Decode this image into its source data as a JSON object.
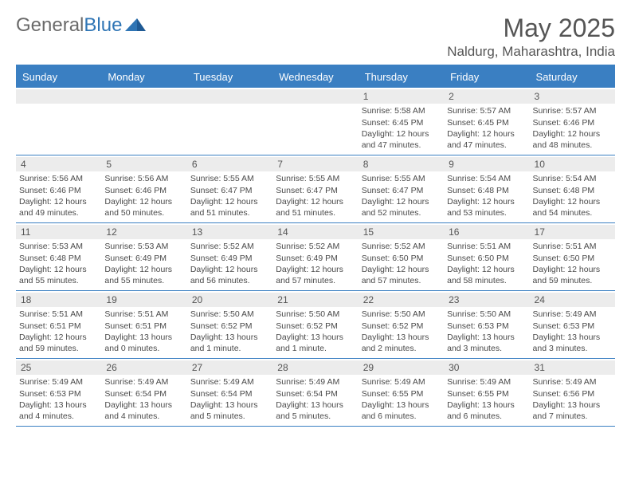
{
  "logo": {
    "text1": "General",
    "text2": "Blue"
  },
  "title": "May 2025",
  "location": "Naldurg, Maharashtra, India",
  "colors": {
    "header_bg": "#3a7fc2",
    "header_text": "#ffffff",
    "daynum_bg": "#ececec",
    "border": "#3a7fc2",
    "body_text": "#4a4a4a",
    "title_text": "#555555",
    "logo_gray": "#6a6a6a",
    "logo_blue": "#2f75b5",
    "background": "#ffffff"
  },
  "typography": {
    "title_fontsize": 32,
    "location_fontsize": 17,
    "dayheader_fontsize": 13,
    "daynum_fontsize": 12,
    "cell_fontsize": 10.5,
    "font_family": "Arial"
  },
  "dayNames": [
    "Sunday",
    "Monday",
    "Tuesday",
    "Wednesday",
    "Thursday",
    "Friday",
    "Saturday"
  ],
  "weeks": [
    [
      null,
      null,
      null,
      null,
      {
        "n": "1",
        "sr": "Sunrise: 5:58 AM",
        "ss": "Sunset: 6:45 PM",
        "d1": "Daylight: 12 hours",
        "d2": "and 47 minutes."
      },
      {
        "n": "2",
        "sr": "Sunrise: 5:57 AM",
        "ss": "Sunset: 6:45 PM",
        "d1": "Daylight: 12 hours",
        "d2": "and 47 minutes."
      },
      {
        "n": "3",
        "sr": "Sunrise: 5:57 AM",
        "ss": "Sunset: 6:46 PM",
        "d1": "Daylight: 12 hours",
        "d2": "and 48 minutes."
      }
    ],
    [
      {
        "n": "4",
        "sr": "Sunrise: 5:56 AM",
        "ss": "Sunset: 6:46 PM",
        "d1": "Daylight: 12 hours",
        "d2": "and 49 minutes."
      },
      {
        "n": "5",
        "sr": "Sunrise: 5:56 AM",
        "ss": "Sunset: 6:46 PM",
        "d1": "Daylight: 12 hours",
        "d2": "and 50 minutes."
      },
      {
        "n": "6",
        "sr": "Sunrise: 5:55 AM",
        "ss": "Sunset: 6:47 PM",
        "d1": "Daylight: 12 hours",
        "d2": "and 51 minutes."
      },
      {
        "n": "7",
        "sr": "Sunrise: 5:55 AM",
        "ss": "Sunset: 6:47 PM",
        "d1": "Daylight: 12 hours",
        "d2": "and 51 minutes."
      },
      {
        "n": "8",
        "sr": "Sunrise: 5:55 AM",
        "ss": "Sunset: 6:47 PM",
        "d1": "Daylight: 12 hours",
        "d2": "and 52 minutes."
      },
      {
        "n": "9",
        "sr": "Sunrise: 5:54 AM",
        "ss": "Sunset: 6:48 PM",
        "d1": "Daylight: 12 hours",
        "d2": "and 53 minutes."
      },
      {
        "n": "10",
        "sr": "Sunrise: 5:54 AM",
        "ss": "Sunset: 6:48 PM",
        "d1": "Daylight: 12 hours",
        "d2": "and 54 minutes."
      }
    ],
    [
      {
        "n": "11",
        "sr": "Sunrise: 5:53 AM",
        "ss": "Sunset: 6:48 PM",
        "d1": "Daylight: 12 hours",
        "d2": "and 55 minutes."
      },
      {
        "n": "12",
        "sr": "Sunrise: 5:53 AM",
        "ss": "Sunset: 6:49 PM",
        "d1": "Daylight: 12 hours",
        "d2": "and 55 minutes."
      },
      {
        "n": "13",
        "sr": "Sunrise: 5:52 AM",
        "ss": "Sunset: 6:49 PM",
        "d1": "Daylight: 12 hours",
        "d2": "and 56 minutes."
      },
      {
        "n": "14",
        "sr": "Sunrise: 5:52 AM",
        "ss": "Sunset: 6:49 PM",
        "d1": "Daylight: 12 hours",
        "d2": "and 57 minutes."
      },
      {
        "n": "15",
        "sr": "Sunrise: 5:52 AM",
        "ss": "Sunset: 6:50 PM",
        "d1": "Daylight: 12 hours",
        "d2": "and 57 minutes."
      },
      {
        "n": "16",
        "sr": "Sunrise: 5:51 AM",
        "ss": "Sunset: 6:50 PM",
        "d1": "Daylight: 12 hours",
        "d2": "and 58 minutes."
      },
      {
        "n": "17",
        "sr": "Sunrise: 5:51 AM",
        "ss": "Sunset: 6:50 PM",
        "d1": "Daylight: 12 hours",
        "d2": "and 59 minutes."
      }
    ],
    [
      {
        "n": "18",
        "sr": "Sunrise: 5:51 AM",
        "ss": "Sunset: 6:51 PM",
        "d1": "Daylight: 12 hours",
        "d2": "and 59 minutes."
      },
      {
        "n": "19",
        "sr": "Sunrise: 5:51 AM",
        "ss": "Sunset: 6:51 PM",
        "d1": "Daylight: 13 hours",
        "d2": "and 0 minutes."
      },
      {
        "n": "20",
        "sr": "Sunrise: 5:50 AM",
        "ss": "Sunset: 6:52 PM",
        "d1": "Daylight: 13 hours",
        "d2": "and 1 minute."
      },
      {
        "n": "21",
        "sr": "Sunrise: 5:50 AM",
        "ss": "Sunset: 6:52 PM",
        "d1": "Daylight: 13 hours",
        "d2": "and 1 minute."
      },
      {
        "n": "22",
        "sr": "Sunrise: 5:50 AM",
        "ss": "Sunset: 6:52 PM",
        "d1": "Daylight: 13 hours",
        "d2": "and 2 minutes."
      },
      {
        "n": "23",
        "sr": "Sunrise: 5:50 AM",
        "ss": "Sunset: 6:53 PM",
        "d1": "Daylight: 13 hours",
        "d2": "and 3 minutes."
      },
      {
        "n": "24",
        "sr": "Sunrise: 5:49 AM",
        "ss": "Sunset: 6:53 PM",
        "d1": "Daylight: 13 hours",
        "d2": "and 3 minutes."
      }
    ],
    [
      {
        "n": "25",
        "sr": "Sunrise: 5:49 AM",
        "ss": "Sunset: 6:53 PM",
        "d1": "Daylight: 13 hours",
        "d2": "and 4 minutes."
      },
      {
        "n": "26",
        "sr": "Sunrise: 5:49 AM",
        "ss": "Sunset: 6:54 PM",
        "d1": "Daylight: 13 hours",
        "d2": "and 4 minutes."
      },
      {
        "n": "27",
        "sr": "Sunrise: 5:49 AM",
        "ss": "Sunset: 6:54 PM",
        "d1": "Daylight: 13 hours",
        "d2": "and 5 minutes."
      },
      {
        "n": "28",
        "sr": "Sunrise: 5:49 AM",
        "ss": "Sunset: 6:54 PM",
        "d1": "Daylight: 13 hours",
        "d2": "and 5 minutes."
      },
      {
        "n": "29",
        "sr": "Sunrise: 5:49 AM",
        "ss": "Sunset: 6:55 PM",
        "d1": "Daylight: 13 hours",
        "d2": "and 6 minutes."
      },
      {
        "n": "30",
        "sr": "Sunrise: 5:49 AM",
        "ss": "Sunset: 6:55 PM",
        "d1": "Daylight: 13 hours",
        "d2": "and 6 minutes."
      },
      {
        "n": "31",
        "sr": "Sunrise: 5:49 AM",
        "ss": "Sunset: 6:56 PM",
        "d1": "Daylight: 13 hours",
        "d2": "and 7 minutes."
      }
    ]
  ]
}
